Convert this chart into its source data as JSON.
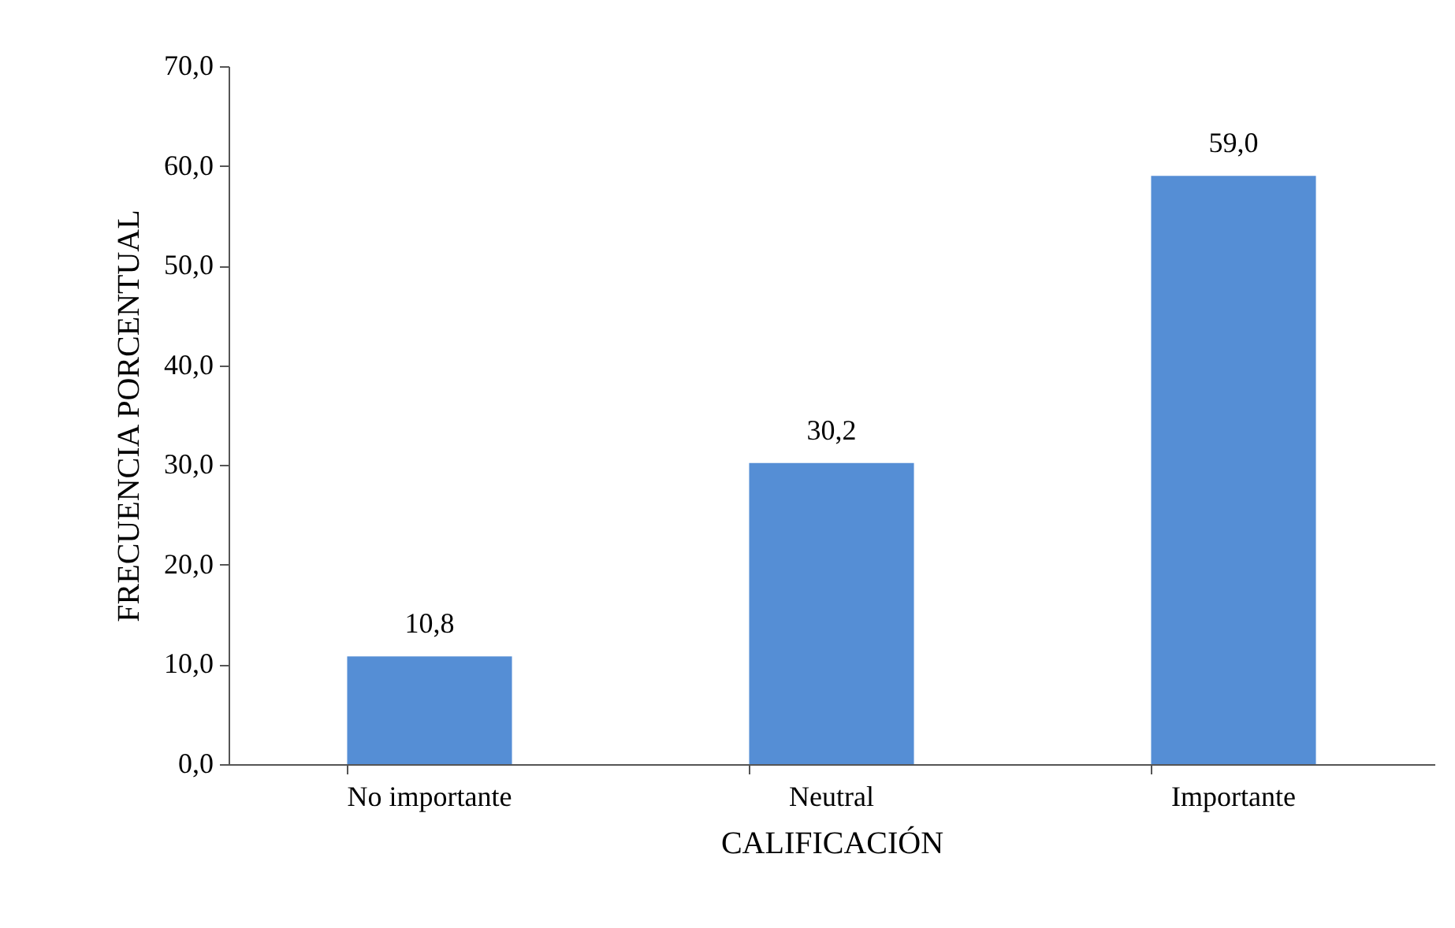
{
  "chart_data": {
    "type": "bar",
    "xlabel": "CALIFICACIÓN",
    "ylabel": "FRECUENCIA PORCENTUAL",
    "categories": [
      "No importante",
      "Neutral",
      "Importante"
    ],
    "values": [
      10.8,
      30.2,
      59.0
    ],
    "color": "#558ed5",
    "value_labels": [
      "10,8",
      "30,2",
      "59,0"
    ],
    "ylim": [
      0,
      70
    ],
    "yticks": [
      {
        "value": 0,
        "label": "0,0"
      },
      {
        "value": 10,
        "label": "10,0"
      },
      {
        "value": 20,
        "label": "20,0"
      },
      {
        "value": 30,
        "label": "30,0"
      },
      {
        "value": 40,
        "label": "40,0"
      },
      {
        "value": 50,
        "label": "50,0"
      },
      {
        "value": 60,
        "label": "60,0"
      },
      {
        "value": 70,
        "label": "70,0"
      }
    ],
    "grid": false
  }
}
